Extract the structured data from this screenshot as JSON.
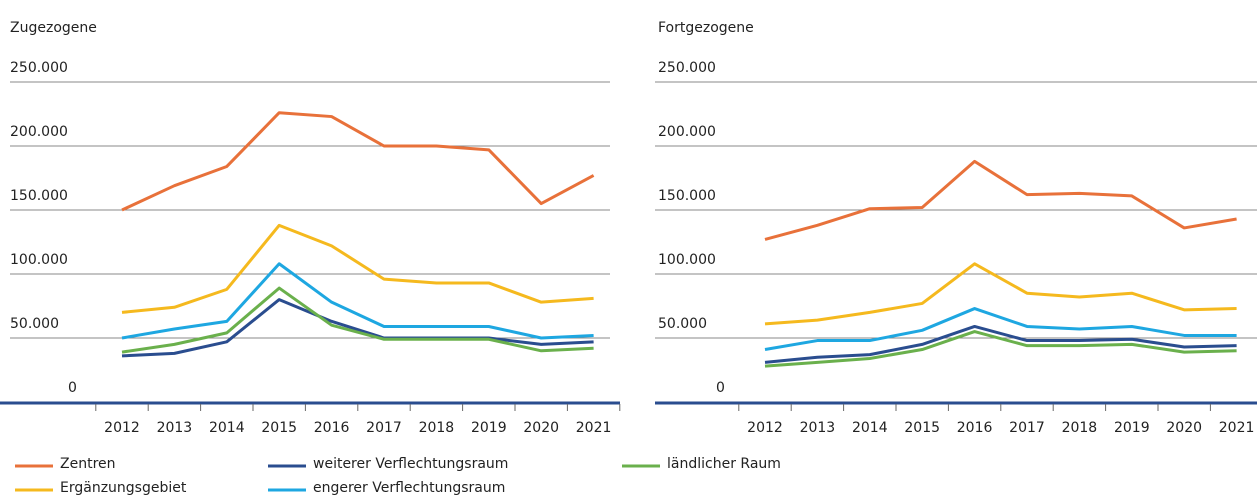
{
  "chart_data": [
    {
      "type": "line",
      "title": "Zugezogene",
      "categories": [
        "2012",
        "2013",
        "2014",
        "2015",
        "2016",
        "2017",
        "2018",
        "2019",
        "2020",
        "2021"
      ],
      "ylim": [
        0,
        250000
      ],
      "yticks": [
        0,
        {
          "value": 50000,
          "label": "50.000"
        },
        {
          "value": 100000,
          "label": "100.000"
        },
        {
          "value": 150000,
          "label": "150.000"
        },
        {
          "value": 200000,
          "label": "200.000"
        },
        {
          "value": 250000,
          "label": "250.000"
        }
      ],
      "grid": true,
      "series": [
        {
          "name": "Zentren",
          "color": "#e8713a",
          "values": [
            150000,
            169000,
            184000,
            226000,
            223000,
            200000,
            200000,
            197000,
            155000,
            177000
          ]
        },
        {
          "name": "Ergänzungsgebiet",
          "color": "#f5b91e",
          "values": [
            70000,
            74000,
            88000,
            138000,
            122000,
            96000,
            93000,
            93000,
            78000,
            81000
          ]
        },
        {
          "name": "weiterer Verflechtungsraum",
          "color": "#2a4d8f",
          "values": [
            36000,
            38000,
            47000,
            80000,
            63000,
            50000,
            50000,
            50000,
            45000,
            47000
          ]
        },
        {
          "name": "engerer Verflechtungsraum",
          "color": "#1ea7e1",
          "values": [
            50000,
            57000,
            63000,
            108000,
            78000,
            59000,
            59000,
            59000,
            50000,
            52000
          ]
        },
        {
          "name": "ländlicher Raum",
          "color": "#6ab04c",
          "values": [
            39000,
            45000,
            54000,
            89000,
            60000,
            49000,
            49000,
            49000,
            40000,
            42000
          ]
        }
      ]
    },
    {
      "type": "line",
      "title": "Fortgezogene",
      "categories": [
        "2012",
        "2013",
        "2014",
        "2015",
        "2016",
        "2017",
        "2018",
        "2019",
        "2020",
        "2021"
      ],
      "ylim": [
        0,
        250000
      ],
      "yticks": [
        0,
        {
          "value": 50000,
          "label": "50.000"
        },
        {
          "value": 100000,
          "label": "100.000"
        },
        {
          "value": 150000,
          "label": "150.000"
        },
        {
          "value": 200000,
          "label": "200.000"
        },
        {
          "value": 250000,
          "label": "250.000"
        }
      ],
      "grid": true,
      "series": [
        {
          "color": "#e8713a",
          "values": [
            127000,
            138000,
            151000,
            152000,
            188000,
            162000,
            163000,
            161000,
            136000,
            143000
          ]
        },
        {
          "color": "#f5b91e",
          "values": [
            61000,
            64000,
            70000,
            77000,
            108000,
            85000,
            82000,
            85000,
            72000,
            73000
          ]
        },
        {
          "color": "#2a4d8f",
          "values": [
            31000,
            35000,
            37000,
            45000,
            59000,
            48000,
            48000,
            49000,
            43000,
            44000
          ]
        },
        {
          "color": "#1ea7e1",
          "values": [
            41000,
            48000,
            48000,
            56000,
            73000,
            59000,
            57000,
            59000,
            52000,
            52000
          ]
        },
        {
          "color": "#6ab04c",
          "values": [
            28000,
            31000,
            34000,
            41000,
            55000,
            44000,
            44000,
            45000,
            39000,
            40000
          ]
        }
      ]
    }
  ]
}
